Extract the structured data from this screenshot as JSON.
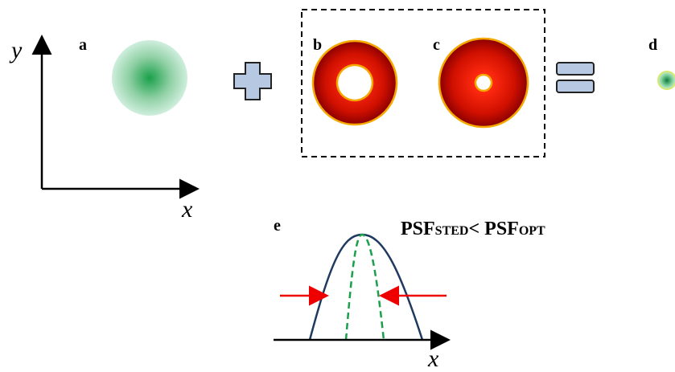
{
  "panels": {
    "a": "a",
    "b": "b",
    "c": "c",
    "d": "d",
    "e": "e"
  },
  "axes": {
    "top_y": "y",
    "top_x": "x",
    "bottom_x": "x"
  },
  "formula": {
    "lhs": "PSF",
    "lhs_sub": "STED",
    "op": "<",
    "rhs": "PSF",
    "rhs_sub": "OPT"
  }
}
